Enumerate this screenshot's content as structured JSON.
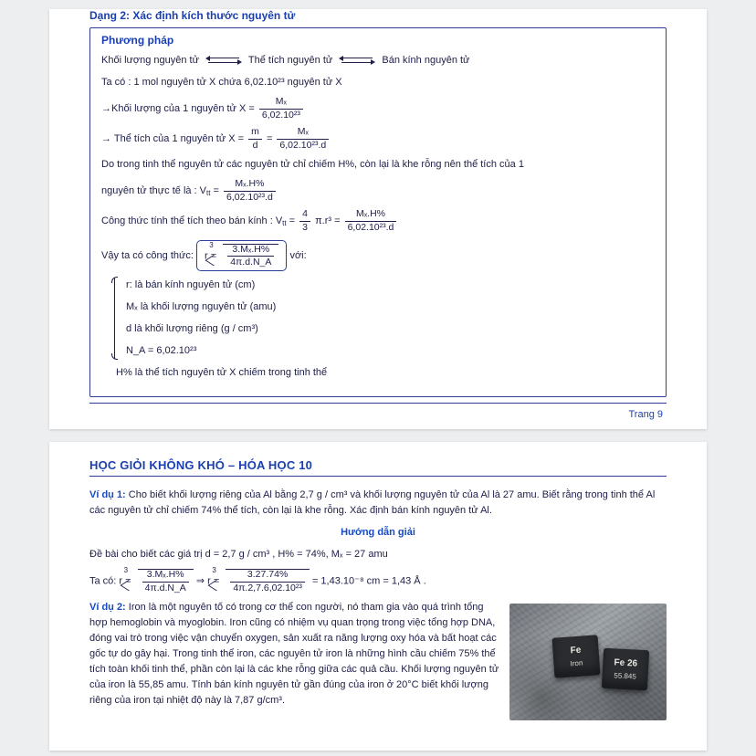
{
  "page1": {
    "section_title": "Dạng 2: Xác định kích thước nguyên tử",
    "box_title": "Phương pháp",
    "line1_a": "Khối lượng nguyên tử",
    "line1_b": "Thể tích nguyên tử",
    "line1_c": "Bán kính nguyên tử",
    "line2": "Ta có : 1 mol nguyên tử X chứa 6,02.10²³ nguyên tử X",
    "line3_lead": "→Khối lượng của 1 nguyên tử X =",
    "f1_num": "Mₓ",
    "f1_den": "6,02.10²³",
    "line4_lead": "→ Thể tích của 1 nguyên tử X =",
    "f2a_num": "m",
    "f2a_den": "d",
    "f2b_num": "Mₓ",
    "f2b_den": "6,02.10²³.d",
    "line5": "Do trong tinh thể nguyên tử các nguyên tử chỉ chiếm H%, còn lại là khe rỗng nên thể tích của 1",
    "line5b_lead": "nguyên tử thực tế là : V",
    "line5b_sub": "tt",
    "f3_num": "Mₓ.H%",
    "f3_den": "6,02.10²³.d",
    "line6_lead": "Công thức tính thể tích theo bán kính : V",
    "f4a_num": "4",
    "f4a_den": "3",
    "f4a_tail": "π.r³",
    "f4b_num": "Mₓ.H%",
    "f4b_den": "6,02.10²³.d",
    "line7_lead": "Vậy ta có công thức:",
    "formula_r": "r =",
    "formula_num": "3.Mₓ.H%",
    "formula_den": "4π.d.N_A",
    "line7_tail": "với:",
    "def_r": "r: là bán kính nguyên tử (cm)",
    "def_M": "Mₓ  là khối lượng nguyên tử (amu)",
    "def_d": "d là khối lượng riêng (g / cm³)",
    "def_NA": "N_A = 6,02.10²³",
    "def_H": "H% là thể tích nguyên tử X chiếm trong tinh thể",
    "page_label": "Trang 9"
  },
  "page2": {
    "book_title": "HỌC GIỎI KHÔNG KHÓ – HÓA HỌC 10",
    "vd1_label": "Ví dụ 1:",
    "vd1_text": " Cho biết khối lượng riêng của Al bằng 2,7 g / cm³ và khối lượng nguyên tử của Al là 27 amu. Biết rằng trong tinh thể Al các nguyên tử chỉ chiếm 74% thể tích, còn lại là khe rỗng. Xác định bán kính nguyên tử Al.",
    "guide": "Hướng dẫn giải",
    "given": "Đề bài cho biết các giá trị d = 2,7 g / cm³ , H% = 74%,  Mₓ = 27 amu",
    "calc_lead": "Ta có: r =",
    "calc_a_num": "3.Mₓ.H%",
    "calc_a_den": "4π.d.N_A",
    "arrow": "⇒ r =",
    "calc_b_num": "3.27.74%",
    "calc_b_den": "4π.2,7.6,02.10²³",
    "calc_result": "= 1,43.10⁻⁸ cm = 1,43 Å .",
    "vd2_label": "Ví dụ 2:",
    "vd2_text": " Iron là một nguyên tố có trong cơ thể con người, nó tham gia vào quá trình tổng hợp hemoglobin và myoglobin. Iron cũng có nhiệm vụ quan trọng trong việc tổng hợp DNA, đóng vai trò trong việc vận chuyển oxygen, sản xuất ra năng lượng oxy hóa và bất hoạt các gốc tự do gây hại. Trong tinh thể iron, các nguyên tử iron là những hình cầu chiếm 75% thể tích toàn khối tinh thể, phần còn lại là các khe rỗng giữa các quả cầu. Khối lượng nguyên tử của iron là 55,85 amu. Tính bán kính nguyên tử gần đúng của iron ở 20°C biết khối lượng riêng của iron tại nhiệt độ này là 7,87 g/cm³.",
    "cube1_a": "Fe",
    "cube1_b": "Iron",
    "cube2_a": "Fe 26",
    "cube2_b": "55.845"
  },
  "colors": {
    "accent": "#1a3fb0",
    "border": "#2b3e9c",
    "text": "#20204a",
    "bg": "#eceef0"
  }
}
